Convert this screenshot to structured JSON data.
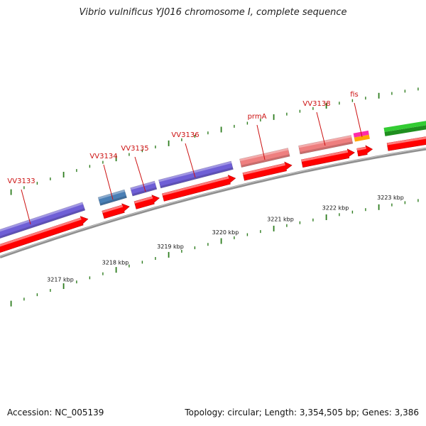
{
  "title": "Vibrio vulnificus YJ016 chromosome I, complete sequence",
  "footer": {
    "accession": "Accession: NC_005139",
    "summary": "Topology: circular; Length: 3,354,505 bp; Genes: 3,386"
  },
  "colors": {
    "backbone": "#8f8f8f",
    "tick": "#2e7d1f",
    "label": "#cc1111",
    "cds": "#ff0000",
    "purple": "#6f5fd6",
    "steelblue": "#4a7fb5",
    "salmon": "#ee7f7f",
    "magenta": "#ff2aa8",
    "orange": "#ffa500",
    "green": "#33cc33"
  },
  "scale_ticks": [
    {
      "label": "3217 kbp"
    },
    {
      "label": "3218 kbp"
    },
    {
      "label": "3219 kbp"
    },
    {
      "label": "3220 kbp"
    },
    {
      "label": "3221 kbp"
    },
    {
      "label": "3222 kbp"
    },
    {
      "label": "3223 kbp"
    }
  ],
  "genes": [
    {
      "name": "VV3133",
      "color": "purple"
    },
    {
      "name": "VV3134",
      "color": "steelblue"
    },
    {
      "name": "VV3135",
      "color": "purple"
    },
    {
      "name": "VV3136",
      "color": "purple"
    },
    {
      "name": "prmA",
      "color": "salmon"
    },
    {
      "name": "VV3138",
      "color": "salmon"
    },
    {
      "name": "fis",
      "color": "magenta"
    },
    {
      "name": "",
      "color": "green"
    }
  ]
}
